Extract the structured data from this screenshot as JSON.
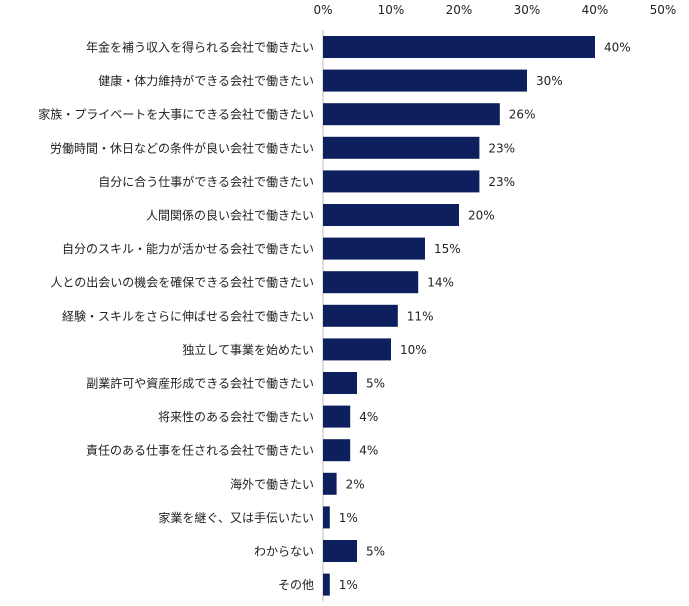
{
  "chart_data": {
    "type": "bar",
    "orientation": "horizontal",
    "title": "",
    "xlabel": "",
    "ylabel": "",
    "xlim": [
      0,
      50
    ],
    "ticks": [
      "0%",
      "10%",
      "20%",
      "30%",
      "40%",
      "50%"
    ],
    "tick_values": [
      0,
      10,
      20,
      30,
      40,
      50
    ],
    "bar_color": "#0d1f5c",
    "categories": [
      "年金を補う収入を得られる会社で働きたい",
      "健康・体力維持ができる会社で働きたい",
      "家族・プライベートを大事にできる会社で働きたい",
      "労働時間・休日などの条件が良い会社で働きたい",
      "自分に合う仕事ができる会社で働きたい",
      "人間関係の良い会社で働きたい",
      "自分のスキル・能力が活かせる会社で働きたい",
      "人との出会いの機会を確保できる会社で働きたい",
      "経験・スキルをさらに伸ばせる会社で働きたい",
      "独立して事業を始めたい",
      "副業許可や資産形成できる会社で働きたい",
      "将来性のある会社で働きたい",
      "責任のある仕事を任される会社で働きたい",
      "海外で働きたい",
      "家業を継ぐ、又は手伝いたい",
      "わからない",
      "その他"
    ],
    "values": [
      40,
      30,
      26,
      23,
      23,
      20,
      15,
      14,
      11,
      10,
      5,
      4,
      4,
      2,
      1,
      5,
      1
    ],
    "value_labels": [
      "40%",
      "30%",
      "26%",
      "23%",
      "23%",
      "20%",
      "15%",
      "14%",
      "11%",
      "10%",
      "5%",
      "4%",
      "4%",
      "2%",
      "1%",
      "5%",
      "1%"
    ]
  }
}
